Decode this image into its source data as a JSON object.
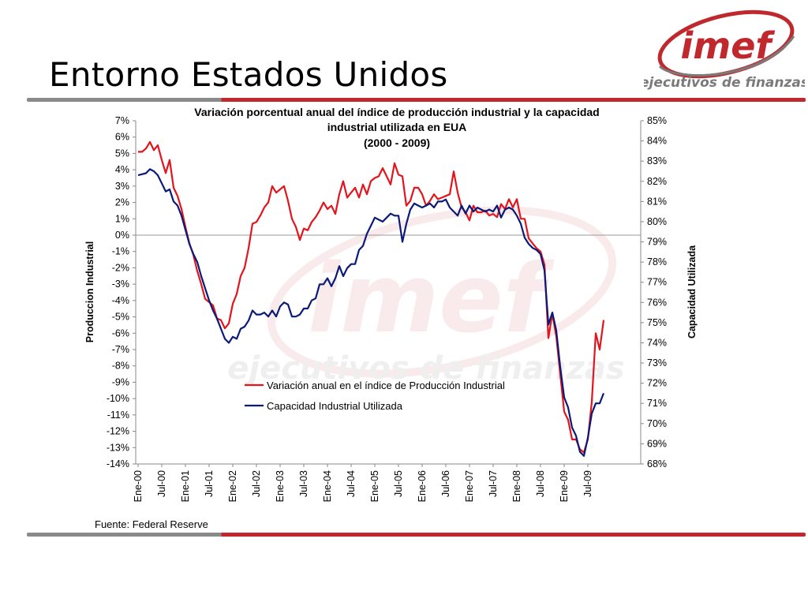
{
  "slide": {
    "title": "Entorno Estados Unidos",
    "source": "Fuente: Federal Reserve"
  },
  "logo": {
    "wordmark": "imef",
    "tagline": "ejecutivos de finanzas"
  },
  "colors": {
    "accent_red": "#c0282d",
    "series1": "#e3141b",
    "series2": "#0a1a78",
    "rule_gray": "#8a8a8a"
  },
  "chart_data": {
    "type": "line",
    "title_lines": [
      "Variación porcentual anual del índice de producción industrial y la capacidad",
      "industrial utilizada en EUA",
      "(2000 - 2009)"
    ],
    "ylabel_left": "Produccion Industrial",
    "ylabel_right": "Capacidad Utilizada",
    "ylim_left": [
      -14,
      7
    ],
    "ylim_right": [
      68,
      85
    ],
    "yticks_left": [
      "7%",
      "6%",
      "5%",
      "4%",
      "3%",
      "2%",
      "1%",
      "0%",
      "-1%",
      "-2%",
      "-3%",
      "-4%",
      "-5%",
      "-6%",
      "-7%",
      "-8%",
      "-9%",
      "-10%",
      "-11%",
      "-12%",
      "-13%",
      "-14%"
    ],
    "yticks_right": [
      "85%",
      "84%",
      "83%",
      "82%",
      "81%",
      "80%",
      "79%",
      "78%",
      "77%",
      "76%",
      "75%",
      "74%",
      "73%",
      "72%",
      "71%",
      "70%",
      "69%",
      "68%"
    ],
    "x_tick_labels": [
      "Ene-00",
      "Jul-00",
      "Ene-01",
      "Jul-01",
      "Ene-02",
      "Jul-02",
      "Ene-03",
      "Jul-03",
      "Ene-04",
      "Jul-04",
      "Ene-05",
      "Jul-05",
      "Ene-06",
      "Jul-06",
      "Ene-07",
      "Jul-07",
      "Ene-08",
      "Jul-08",
      "Ene-09",
      "Jul-09"
    ],
    "legend_position": "center",
    "series": [
      {
        "name": "Variación anual en el índice de Producción Industrial",
        "axis": "left",
        "color": "#e3141b",
        "values": [
          5.1,
          5.1,
          5.3,
          5.7,
          5.2,
          5.5,
          4.6,
          3.8,
          4.6,
          2.9,
          2.4,
          1.6,
          0.5,
          -0.5,
          -1.2,
          -2.2,
          -3.0,
          -3.9,
          -4.1,
          -4.3,
          -5.1,
          -5.2,
          -5.7,
          -5.4,
          -4.2,
          -3.6,
          -2.5,
          -2.0,
          -0.8,
          0.7,
          0.8,
          1.2,
          1.7,
          2.0,
          3.0,
          2.6,
          2.8,
          3.0,
          2.1,
          1.0,
          0.5,
          -0.3,
          0.4,
          0.3,
          0.8,
          1.1,
          1.5,
          2.0,
          1.6,
          1.8,
          1.3,
          2.5,
          3.3,
          2.3,
          2.6,
          2.9,
          2.3,
          3.1,
          2.5,
          3.3,
          3.5,
          3.6,
          4.1,
          3.6,
          3.1,
          4.4,
          3.7,
          3.6,
          1.8,
          2.1,
          2.9,
          2.9,
          2.5,
          1.8,
          2.1,
          2.5,
          2.2,
          2.3,
          2.4,
          2.5,
          3.9,
          2.6,
          1.7,
          1.4,
          0.9,
          1.8,
          1.4,
          1.4,
          1.5,
          1.2,
          1.3,
          1.1,
          1.9,
          1.6,
          2.2,
          1.7,
          2.2,
          1.0,
          1.0,
          -0.2,
          -0.5,
          -0.8,
          -1.0,
          -1.8,
          -6.3,
          -4.8,
          -6.2,
          -8.5,
          -10.8,
          -11.3,
          -12.5,
          -12.5,
          -13.1,
          -13.3,
          -12.5,
          -10.2,
          -6.0,
          -7.0,
          -5.2
        ]
      },
      {
        "name": "Capacidad Industrial Utilizada",
        "axis": "right",
        "color": "#0a1a78",
        "values": [
          82.3,
          82.35,
          82.4,
          82.6,
          82.5,
          82.3,
          81.9,
          81.5,
          81.6,
          81.0,
          80.8,
          80.3,
          79.6,
          78.9,
          78.4,
          78.0,
          77.3,
          76.7,
          76.1,
          75.6,
          75.2,
          74.7,
          74.2,
          74.0,
          74.3,
          74.2,
          74.7,
          74.8,
          75.1,
          75.6,
          75.4,
          75.4,
          75.5,
          75.3,
          75.6,
          75.3,
          75.8,
          76.0,
          75.9,
          75.3,
          75.3,
          75.4,
          75.7,
          75.7,
          76.1,
          76.2,
          76.9,
          76.9,
          77.2,
          76.8,
          77.2,
          77.8,
          77.3,
          77.7,
          77.9,
          77.9,
          78.6,
          78.8,
          79.4,
          79.8,
          80.2,
          80.1,
          80.0,
          80.2,
          80.4,
          80.3,
          80.3,
          79.0,
          79.9,
          80.6,
          80.9,
          80.8,
          80.7,
          80.8,
          80.9,
          80.7,
          81.0,
          81.0,
          81.1,
          80.7,
          80.5,
          80.3,
          80.8,
          80.4,
          80.8,
          80.5,
          80.7,
          80.6,
          80.5,
          80.6,
          80.5,
          80.8,
          80.2,
          80.6,
          80.7,
          80.6,
          80.3,
          79.9,
          79.2,
          78.9,
          78.7,
          78.6,
          78.4,
          77.6,
          74.9,
          75.5,
          74.6,
          72.8,
          71.3,
          70.8,
          69.8,
          69.4,
          68.6,
          68.4,
          69.3,
          70.5,
          71.0,
          71.0,
          71.5
        ]
      }
    ]
  }
}
